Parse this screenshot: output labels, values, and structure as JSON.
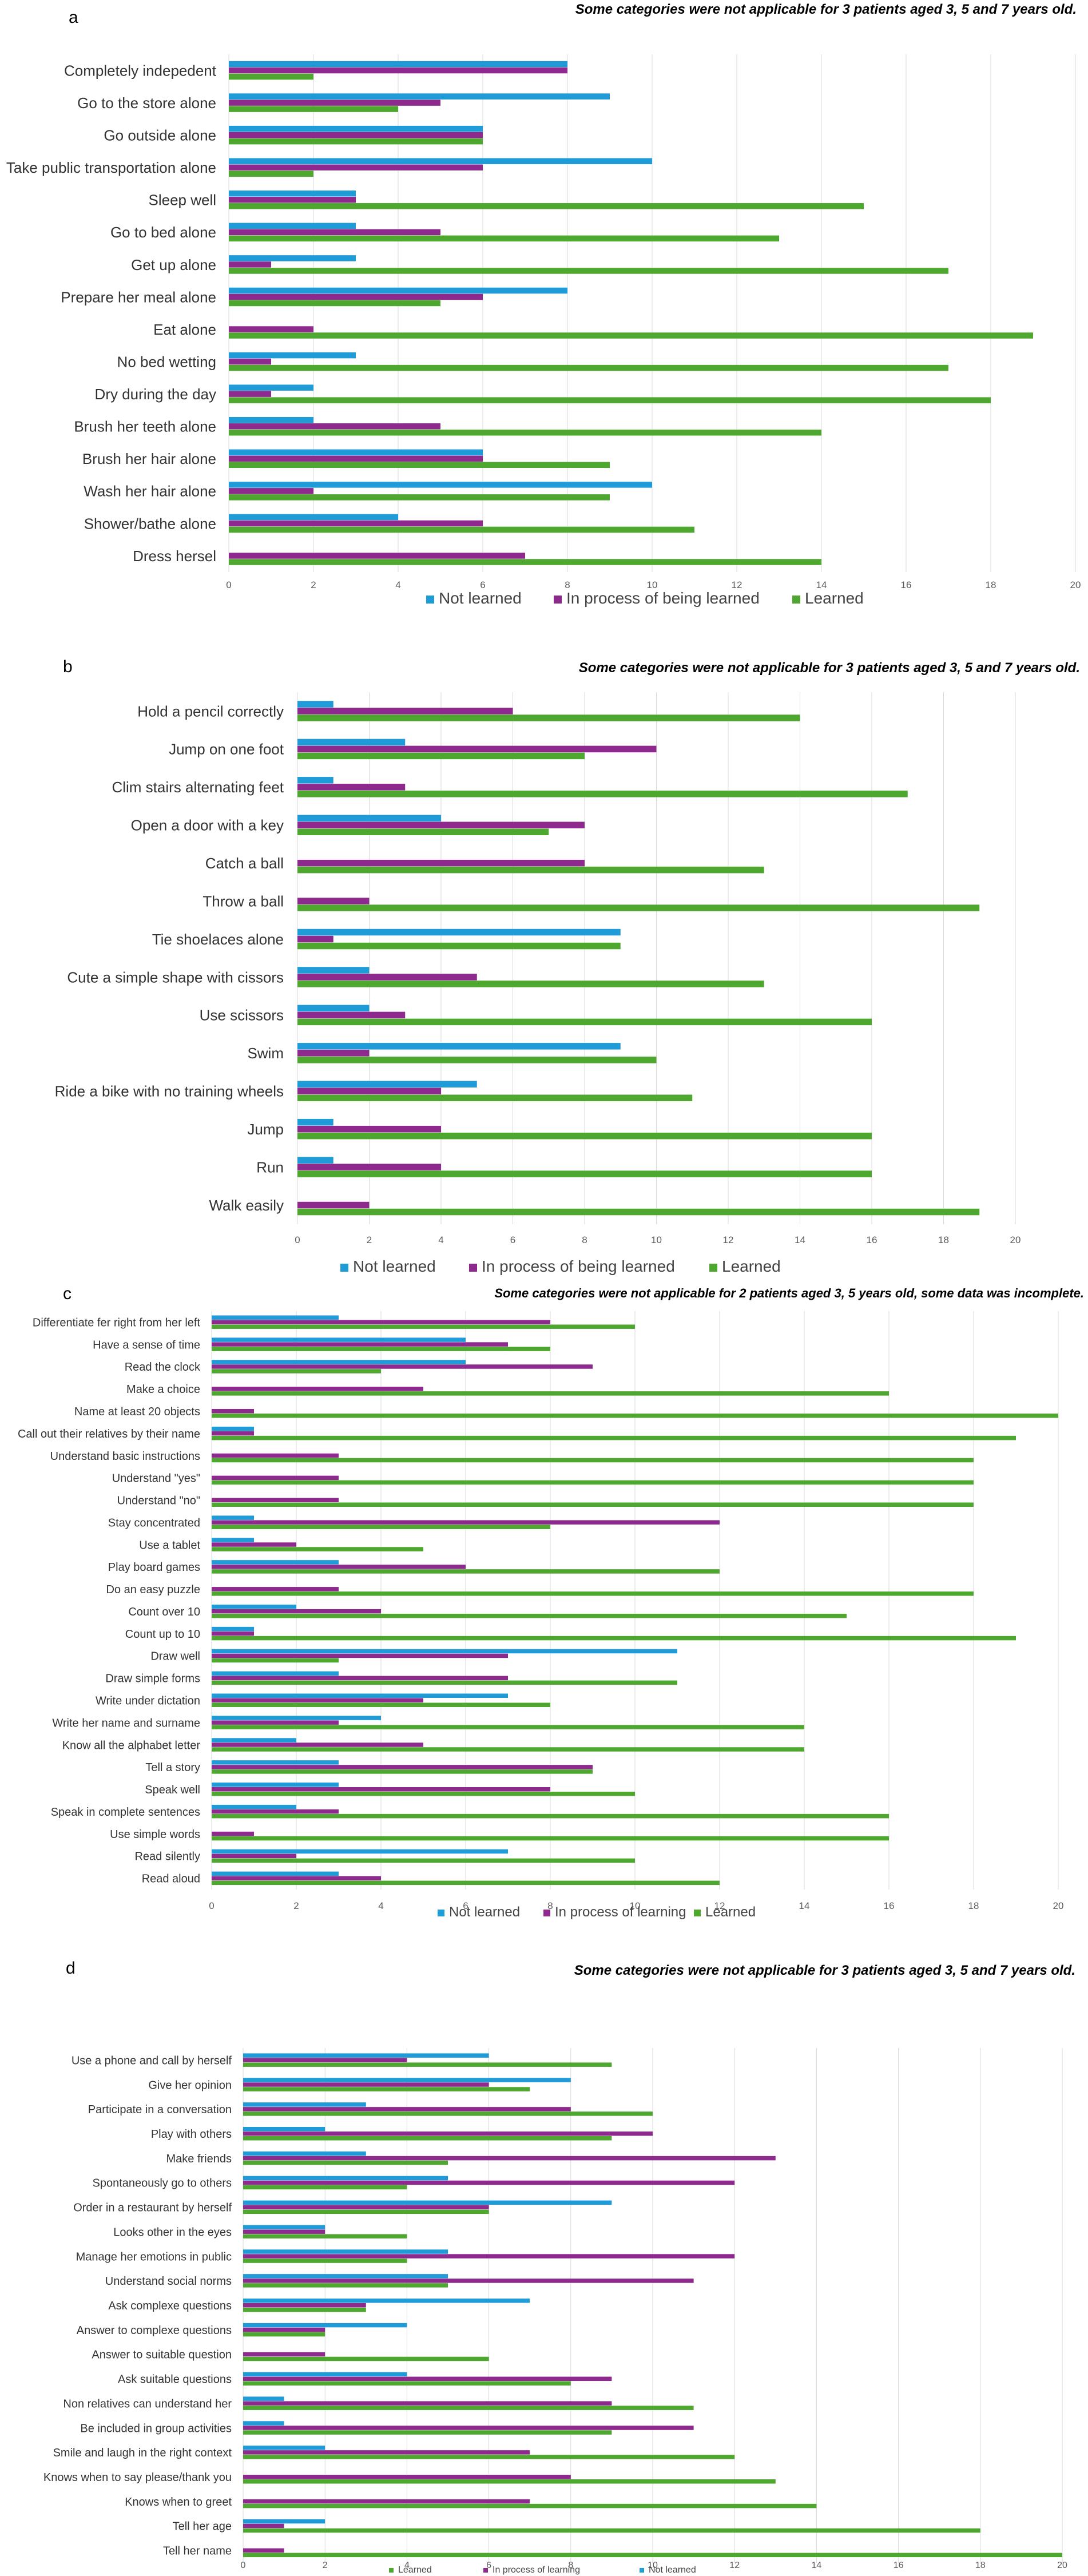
{
  "colors": {
    "not_learned": "#1f9bd7",
    "in_process": "#8e2a8e",
    "learned": "#4ea72e"
  },
  "chart_data": [
    {
      "type": "bar",
      "panel": "a",
      "note": "Some categories were not applicable for 3 patients aged 3, 5 and 7 years old.",
      "categories": [
        "Completely indepedent",
        "Go to the store alone",
        "Go outside alone",
        "Take public transportation alone",
        "Sleep well",
        "Go to bed alone",
        "Get up alone",
        "Prepare her meal alone",
        "Eat alone",
        "No bed wetting",
        "Dry during the day",
        "Brush her teeth alone",
        "Brush her hair alone",
        "Wash her hair alone",
        "Shower/bathe alone",
        "Dress hersel"
      ],
      "series": [
        {
          "name": "Not learned",
          "values": [
            8,
            9,
            6,
            10,
            3,
            3,
            3,
            8,
            0,
            3,
            2,
            2,
            6,
            10,
            4,
            0
          ]
        },
        {
          "name": "In process of being learned",
          "values": [
            8,
            5,
            6,
            6,
            3,
            5,
            1,
            6,
            2,
            1,
            1,
            5,
            6,
            2,
            6,
            7
          ]
        },
        {
          "name": "Learned",
          "values": [
            2,
            4,
            6,
            2,
            15,
            13,
            17,
            5,
            19,
            17,
            18,
            14,
            9,
            9,
            11,
            14
          ]
        }
      ],
      "xticks": [
        "0",
        "2",
        "4",
        "6",
        "8",
        "10",
        "12",
        "14",
        "16",
        "18",
        "20"
      ],
      "xlim": [
        0,
        20
      ],
      "legend": [
        "Not learned",
        "In process of being learned",
        "Learned"
      ]
    },
    {
      "type": "bar",
      "panel": "b",
      "note": "Some categories were not applicable for 3 patients aged 3, 5 and 7 years old.",
      "categories": [
        "Hold a pencil correctly",
        "Jump on one foot",
        "Clim stairs alternating feet",
        "Open a door with a key",
        "Catch a ball",
        "Throw a ball",
        "Tie shoelaces alone",
        "Cute a simple shape with cissors",
        "Use scissors",
        "Swim",
        "Ride a bike with no training wheels",
        "Jump",
        "Run",
        "Walk easily"
      ],
      "series": [
        {
          "name": "Not learned",
          "values": [
            1,
            3,
            1,
            4,
            0,
            0,
            9,
            2,
            2,
            9,
            5,
            1,
            1,
            0
          ]
        },
        {
          "name": "In process of being learned",
          "values": [
            6,
            10,
            3,
            8,
            8,
            2,
            1,
            5,
            3,
            2,
            4,
            4,
            4,
            2
          ]
        },
        {
          "name": "Learned",
          "values": [
            14,
            8,
            17,
            7,
            13,
            19,
            9,
            13,
            16,
            10,
            11,
            16,
            16,
            19
          ]
        }
      ],
      "xticks": [
        "0",
        "2",
        "4",
        "6",
        "8",
        "10",
        "12",
        "14",
        "16",
        "18",
        "20"
      ],
      "xlim": [
        0,
        20
      ],
      "legend": [
        "Not learned",
        "In process of being learned",
        "Learned"
      ]
    },
    {
      "type": "bar",
      "panel": "c",
      "note": "Some categories were not applicable for 2 patients aged 3, 5 years old, some data was incomplete.",
      "categories": [
        "Differentiate fer right from her left",
        "Have a sense of time",
        "Read the clock",
        "Make a choice",
        "Name at least 20 objects",
        "Call out their relatives by their name",
        "Understand basic instructions",
        "Understand \"yes\"",
        "Understand \"no\"",
        "Stay concentrated",
        "Use a tablet",
        "Play board games",
        "Do an easy puzzle",
        "Count over 10",
        "Count up to 10",
        "Draw well",
        "Draw simple forms",
        "Write under dictation",
        "Write her name and surname",
        "Know all the alphabet letter",
        "Tell a story",
        "Speak well",
        "Speak in complete sentences",
        "Use simple words",
        "Read silently",
        "Read aloud"
      ],
      "series": [
        {
          "name": "Not learned",
          "values": [
            3,
            6,
            6,
            0,
            0,
            1,
            0,
            0,
            0,
            1,
            1,
            3,
            0,
            2,
            1,
            11,
            3,
            7,
            4,
            2,
            3,
            3,
            2,
            0,
            7,
            3
          ]
        },
        {
          "name": "In process of learning",
          "values": [
            8,
            7,
            9,
            5,
            1,
            1,
            3,
            3,
            3,
            12,
            2,
            6,
            3,
            4,
            1,
            7,
            7,
            5,
            3,
            5,
            9,
            8,
            3,
            1,
            2,
            4
          ]
        },
        {
          "name": "Learned",
          "values": [
            10,
            8,
            4,
            16,
            20,
            19,
            18,
            18,
            18,
            8,
            5,
            12,
            18,
            15,
            19,
            3,
            11,
            8,
            14,
            14,
            9,
            10,
            16,
            16,
            10,
            12
          ]
        }
      ],
      "xticks": [
        "0",
        "2",
        "4",
        "6",
        "8",
        "10",
        "12",
        "14",
        "16",
        "18",
        "20"
      ],
      "xlim": [
        0,
        20
      ],
      "legend": [
        "Not learned",
        "In process of learning",
        "Learned"
      ]
    },
    {
      "type": "bar",
      "panel": "d",
      "note": "Some categories were not applicable for 3 patients aged 3, 5 and 7 years old.",
      "categories": [
        "Use a phone and call by herself",
        "Give her opinion",
        "Participate in a conversation",
        "Play with others",
        "Make friends",
        "Spontaneously go to others",
        "Order in a restaurant by herself",
        "Looks other in the eyes",
        "Manage her emotions in public",
        "Understand social norms",
        "Ask complexe questions",
        "Answer to complexe questions",
        "Answer to suitable question",
        "Ask suitable questions",
        "Non relatives can understand her",
        "Be included in group activities",
        "Smile and laugh in the right context",
        "Knows when to say please/thank you",
        "Knows when to greet",
        "Tell her age",
        "Tell her name"
      ],
      "series": [
        {
          "name": "Not learned",
          "values": [
            6,
            8,
            3,
            2,
            3,
            5,
            9,
            2,
            5,
            5,
            7,
            4,
            0,
            4,
            1,
            1,
            2,
            0,
            0,
            2,
            0
          ]
        },
        {
          "name": "In process of learning",
          "values": [
            4,
            6,
            8,
            10,
            13,
            12,
            6,
            2,
            12,
            11,
            3,
            2,
            2,
            9,
            9,
            11,
            7,
            8,
            7,
            1,
            1
          ]
        },
        {
          "name": "Learned",
          "values": [
            9,
            7,
            10,
            9,
            5,
            4,
            6,
            4,
            4,
            5,
            3,
            2,
            6,
            8,
            11,
            9,
            12,
            13,
            14,
            18,
            20
          ]
        }
      ],
      "xticks": [
        "0",
        "2",
        "4",
        "6",
        "8",
        "10",
        "12",
        "14",
        "16",
        "18",
        "20"
      ],
      "xlim": [
        0,
        20
      ],
      "legend": [
        "Learned",
        "In process of learning",
        "Not learned"
      ]
    }
  ]
}
